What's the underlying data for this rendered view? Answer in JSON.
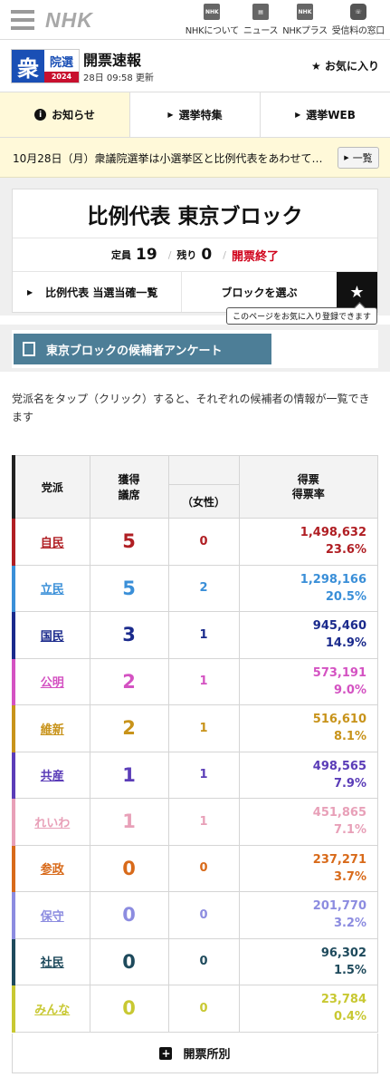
{
  "nav": {
    "logo": "NHK",
    "links": [
      {
        "label": "NHKについて",
        "icon": "nhk-icon"
      },
      {
        "label": "ニュース",
        "icon": "news-icon"
      },
      {
        "label": "NHKプラス",
        "icon": "nhkplus-icon"
      },
      {
        "label": "受信料の窓口",
        "icon": "fee-icon"
      }
    ]
  },
  "header": {
    "logo_kanji": "衆",
    "logo_kind": "院選",
    "logo_year": "2024",
    "title": "開票速報",
    "updated": "28日 09:58 更新",
    "favorite": "お気に入り"
  },
  "tabs": [
    {
      "label": "お知らせ",
      "active": true
    },
    {
      "label": "選挙特集",
      "active": false
    },
    {
      "label": "選挙WEB",
      "active": false
    }
  ],
  "notice": {
    "text": "10月28日（月）衆議院選挙は小選挙区と比例代表をあわせて…",
    "button": "一覧"
  },
  "block": {
    "title": "比例代表 東京ブロック",
    "quota_label": "定員",
    "quota": "19",
    "remaining_label": "残り",
    "remaining": "0",
    "status": "開票終了",
    "action1": "比例代表 当選当確一覧",
    "action2": "ブロックを選ぶ",
    "tooltip": "このページをお気に入り登録できます"
  },
  "survey": {
    "label": "東京ブロックの候補者アンケート"
  },
  "description": "党派名をタップ（クリック）すると、それぞれの候補者の情報が一覧できます",
  "table": {
    "headers": {
      "party": "党派",
      "seats": "獲得議席",
      "female": "（女性）",
      "votes": "得票",
      "rate": "得票率"
    },
    "rows": [
      {
        "party": "自民",
        "seats": "5",
        "female": "0",
        "votes": "1,498,632",
        "rate": "23.6%",
        "color": "#b01e23"
      },
      {
        "party": "立民",
        "seats": "5",
        "female": "2",
        "votes": "1,298,166",
        "rate": "20.5%",
        "color": "#3a8fd8"
      },
      {
        "party": "国民",
        "seats": "3",
        "female": "1",
        "votes": "945,460",
        "rate": "14.9%",
        "color": "#1a2a8c"
      },
      {
        "party": "公明",
        "seats": "2",
        "female": "1",
        "votes": "573,191",
        "rate": "9.0%",
        "color": "#d452c2"
      },
      {
        "party": "維新",
        "seats": "2",
        "female": "1",
        "votes": "516,610",
        "rate": "8.1%",
        "color": "#c8931a"
      },
      {
        "party": "共産",
        "seats": "1",
        "female": "1",
        "votes": "498,565",
        "rate": "7.9%",
        "color": "#5b3db8"
      },
      {
        "party": "れいわ",
        "seats": "1",
        "female": "1",
        "votes": "451,865",
        "rate": "7.1%",
        "color": "#e8a0b8"
      },
      {
        "party": "参政",
        "seats": "0",
        "female": "0",
        "votes": "237,271",
        "rate": "3.7%",
        "color": "#d86a1a"
      },
      {
        "party": "保守",
        "seats": "0",
        "female": "0",
        "votes": "201,770",
        "rate": "3.2%",
        "color": "#8c8ce0"
      },
      {
        "party": "社民",
        "seats": "0",
        "female": "0",
        "votes": "96,302",
        "rate": "1.5%",
        "color": "#1e4a5c"
      },
      {
        "party": "みんな",
        "seats": "0",
        "female": "0",
        "votes": "23,784",
        "rate": "0.4%",
        "color": "#c8c832"
      }
    ]
  },
  "footer_button": "開票所別"
}
